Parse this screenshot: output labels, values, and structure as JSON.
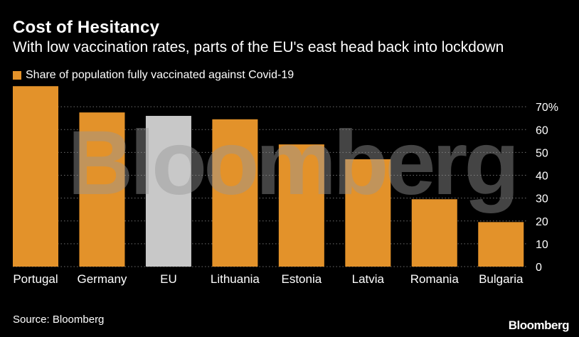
{
  "header": {
    "title": "Cost of Hesitancy",
    "subtitle": "With low vaccination rates, parts of the EU's east head back into lockdown"
  },
  "legend": {
    "label": "Share of population fully vaccinated against Covid-19"
  },
  "colors": {
    "primary": "#e3922a",
    "highlight": "#c8c8c8",
    "grid": "#6e6e6e",
    "text": "#ffffff",
    "background": "#000000"
  },
  "chart_data": {
    "type": "bar",
    "title": "Cost of Hesitancy",
    "subtitle": "With low vaccination rates, parts of the EU's east head back into lockdown",
    "xlabel": "",
    "ylabel": "",
    "categories": [
      "Portugal",
      "Germany",
      "EU",
      "Lithuania",
      "Estonia",
      "Latvia",
      "Romania",
      "Bulgaria"
    ],
    "series": [
      {
        "name": "Share of population fully vaccinated against Covid-19",
        "values": [
          79,
          67.5,
          66,
          64.5,
          53.5,
          47,
          29.5,
          19.5
        ]
      }
    ],
    "highlight_category": "EU",
    "ylim": [
      0,
      80
    ],
    "yticks": [
      0,
      10,
      20,
      30,
      40,
      50,
      60,
      70
    ],
    "ytick_labels": [
      "0",
      "10",
      "20",
      "30",
      "40",
      "50",
      "60",
      "70%"
    ],
    "y_axis_position": "right",
    "grid": "horizontal dotted",
    "legend_position": "top-left"
  },
  "watermark": "Bloomberg",
  "footer": {
    "source": "Source: Bloomberg",
    "brand": "Bloomberg"
  }
}
